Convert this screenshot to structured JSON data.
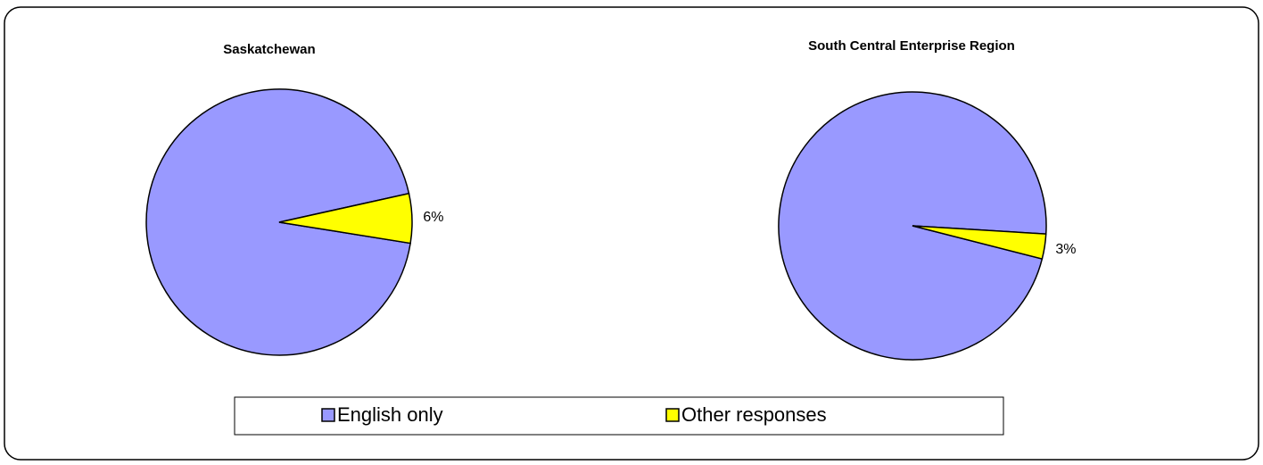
{
  "chart_data": [
    {
      "type": "pie",
      "title": "Saskatchewan",
      "categories": [
        "English only",
        "Other responses"
      ],
      "values": [
        94,
        6
      ],
      "value_labels": [
        null,
        "6%"
      ],
      "colors": [
        "#9999ff",
        "#ffff00"
      ]
    },
    {
      "type": "pie",
      "title": "South Central Enterprise Region",
      "categories": [
        "English only",
        "Other responses"
      ],
      "values": [
        97,
        3
      ],
      "value_labels": [
        null,
        "3%"
      ],
      "colors": [
        "#9999ff",
        "#ffff00"
      ]
    }
  ],
  "legend": [
    {
      "name": "English only",
      "color": "#9999ff"
    },
    {
      "name": "Other responses",
      "color": "#ffff00"
    }
  ]
}
